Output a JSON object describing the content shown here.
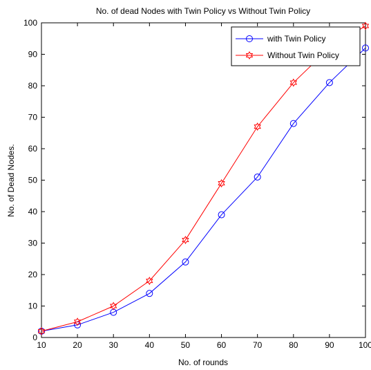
{
  "chart_data": {
    "type": "line",
    "title": "No. of dead Nodes with Twin Policy vs Without Twin Policy",
    "xlabel": "No. of rounds",
    "ylabel": "No. of Dead Nodes.",
    "xlim": [
      10,
      100
    ],
    "ylim": [
      0,
      100
    ],
    "xticks": [
      10,
      20,
      30,
      40,
      50,
      60,
      70,
      80,
      90,
      100
    ],
    "yticks": [
      0,
      10,
      20,
      30,
      40,
      50,
      60,
      70,
      80,
      90,
      100
    ],
    "grid": false,
    "legend_position": "top-right",
    "x": [
      10,
      20,
      30,
      40,
      50,
      60,
      70,
      80,
      90,
      100
    ],
    "series": [
      {
        "name": "with Twin Policy",
        "color": "#0000ff",
        "marker": "circle",
        "values": [
          2,
          4,
          8,
          14,
          24,
          39,
          51,
          68,
          81,
          92
        ]
      },
      {
        "name": "Without Twin Policy",
        "color": "#ff0000",
        "marker": "hexagram",
        "values": [
          2,
          5,
          10,
          18,
          31,
          49,
          67,
          81,
          92,
          99
        ]
      }
    ]
  }
}
